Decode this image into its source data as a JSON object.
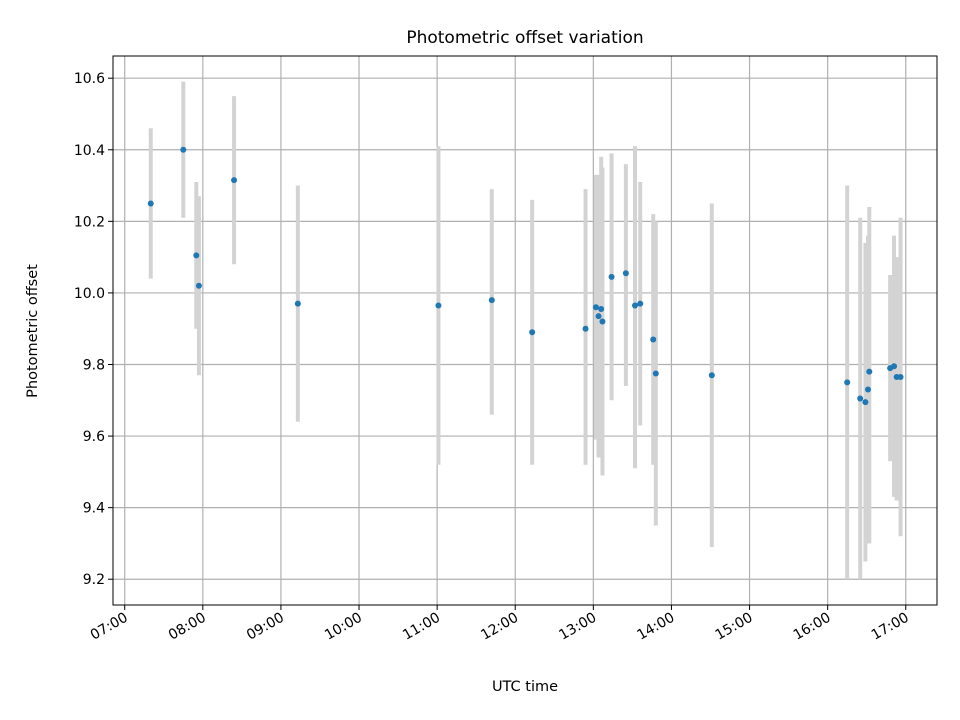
{
  "chart_data": {
    "type": "scatter",
    "title": "Photometric offset variation",
    "xlabel": "UTC time",
    "ylabel": "Photometric offset",
    "x_unit": "UTC time of day (HH:MM)",
    "xlim": [
      "06:51",
      "17:24"
    ],
    "ylim": [
      9.128,
      10.662
    ],
    "x_ticks": [
      "07:00",
      "08:00",
      "09:00",
      "10:00",
      "11:00",
      "12:00",
      "13:00",
      "14:00",
      "15:00",
      "16:00",
      "17:00"
    ],
    "y_ticks": [
      9.2,
      9.4,
      9.6,
      9.8,
      10.0,
      10.2,
      10.4,
      10.6
    ],
    "y_tick_labels": [
      "9.2",
      "9.4",
      "9.6",
      "9.8",
      "10.0",
      "10.2",
      "10.4",
      "10.6"
    ],
    "grid": true,
    "colors": {
      "points": "#1f77b4",
      "error_bars": "#d3d3d3",
      "grid": "#b0b0b0"
    },
    "points": [
      {
        "t": "07:20",
        "y": 10.25,
        "lo": 10.04,
        "hi": 10.46
      },
      {
        "t": "07:45",
        "y": 10.4,
        "lo": 10.21,
        "hi": 10.59
      },
      {
        "t": "07:55",
        "y": 10.105,
        "lo": 9.9,
        "hi": 10.31
      },
      {
        "t": "07:57",
        "y": 10.02,
        "lo": 9.77,
        "hi": 10.27
      },
      {
        "t": "08:24",
        "y": 10.315,
        "lo": 10.08,
        "hi": 10.55
      },
      {
        "t": "09:13",
        "y": 9.97,
        "lo": 9.64,
        "hi": 10.3
      },
      {
        "t": "11:01",
        "y": 9.965,
        "lo": 9.52,
        "hi": 10.41
      },
      {
        "t": "11:42",
        "y": 9.98,
        "lo": 9.66,
        "hi": 10.29
      },
      {
        "t": "12:13",
        "y": 9.89,
        "lo": 9.52,
        "hi": 10.26
      },
      {
        "t": "12:54",
        "y": 9.9,
        "lo": 9.52,
        "hi": 10.29
      },
      {
        "t": "13:02",
        "y": 9.96,
        "lo": 9.59,
        "hi": 10.33
      },
      {
        "t": "13:04",
        "y": 9.935,
        "lo": 9.54,
        "hi": 10.33
      },
      {
        "t": "13:06",
        "y": 9.955,
        "lo": 9.57,
        "hi": 10.38
      },
      {
        "t": "13:07",
        "y": 9.92,
        "lo": 9.49,
        "hi": 10.35
      },
      {
        "t": "13:14",
        "y": 10.045,
        "lo": 9.7,
        "hi": 10.39
      },
      {
        "t": "13:25",
        "y": 10.055,
        "lo": 9.74,
        "hi": 10.36
      },
      {
        "t": "13:32",
        "y": 9.965,
        "lo": 9.51,
        "hi": 10.41
      },
      {
        "t": "13:36",
        "y": 9.97,
        "lo": 9.63,
        "hi": 10.31
      },
      {
        "t": "13:46",
        "y": 9.87,
        "lo": 9.52,
        "hi": 10.22
      },
      {
        "t": "13:48",
        "y": 9.775,
        "lo": 9.35,
        "hi": 10.2
      },
      {
        "t": "14:31",
        "y": 9.77,
        "lo": 9.29,
        "hi": 10.25
      },
      {
        "t": "16:15",
        "y": 9.75,
        "lo": 9.2,
        "hi": 10.3
      },
      {
        "t": "16:25",
        "y": 9.705,
        "lo": 9.2,
        "hi": 10.21
      },
      {
        "t": "16:29",
        "y": 9.695,
        "lo": 9.25,
        "hi": 10.14
      },
      {
        "t": "16:31",
        "y": 9.73,
        "lo": 9.3,
        "hi": 10.16
      },
      {
        "t": "16:32",
        "y": 9.78,
        "lo": 9.3,
        "hi": 10.24
      },
      {
        "t": "16:48",
        "y": 9.79,
        "lo": 9.53,
        "hi": 10.05
      },
      {
        "t": "16:51",
        "y": 9.795,
        "lo": 9.43,
        "hi": 10.16
      },
      {
        "t": "16:53",
        "y": 9.765,
        "lo": 9.42,
        "hi": 10.1
      },
      {
        "t": "16:56",
        "y": 9.765,
        "lo": 9.32,
        "hi": 10.21
      }
    ]
  }
}
